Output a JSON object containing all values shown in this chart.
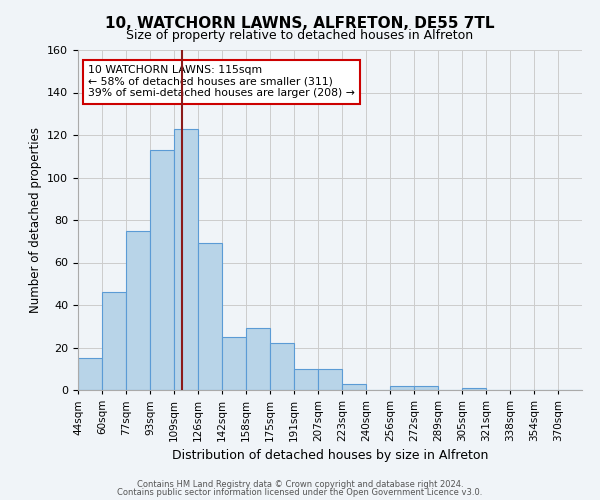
{
  "title": "10, WATCHORN LAWNS, ALFRETON, DE55 7TL",
  "subtitle": "Size of property relative to detached houses in Alfreton",
  "xlabel": "Distribution of detached houses by size in Alfreton",
  "ylabel": "Number of detached properties",
  "bin_labels": [
    "44sqm",
    "60sqm",
    "77sqm",
    "93sqm",
    "109sqm",
    "126sqm",
    "142sqm",
    "158sqm",
    "175sqm",
    "191sqm",
    "207sqm",
    "223sqm",
    "240sqm",
    "256sqm",
    "272sqm",
    "289sqm",
    "305sqm",
    "321sqm",
    "338sqm",
    "354sqm",
    "370sqm"
  ],
  "bar_values": [
    15,
    46,
    75,
    113,
    123,
    69,
    25,
    29,
    22,
    10,
    10,
    3,
    0,
    2,
    2,
    0,
    1,
    0,
    0,
    0,
    0
  ],
  "bar_color": "#b8d4e8",
  "bar_edge_color": "#5b9bd5",
  "ylim": [
    0,
    160
  ],
  "yticks": [
    0,
    20,
    40,
    60,
    80,
    100,
    120,
    140,
    160
  ],
  "marker_line_color": "#8b1a1a",
  "annotation_text": "10 WATCHORN LAWNS: 115sqm\n← 58% of detached houses are smaller (311)\n39% of semi-detached houses are larger (208) →",
  "annotation_box_color": "#ffffff",
  "annotation_box_edge": "#cc0000",
  "footer_line1": "Contains HM Land Registry data © Crown copyright and database right 2024.",
  "footer_line2": "Contains public sector information licensed under the Open Government Licence v3.0.",
  "background_color": "#f0f4f8",
  "plot_bg_color": "#f0f4f8",
  "grid_color": "#cccccc"
}
